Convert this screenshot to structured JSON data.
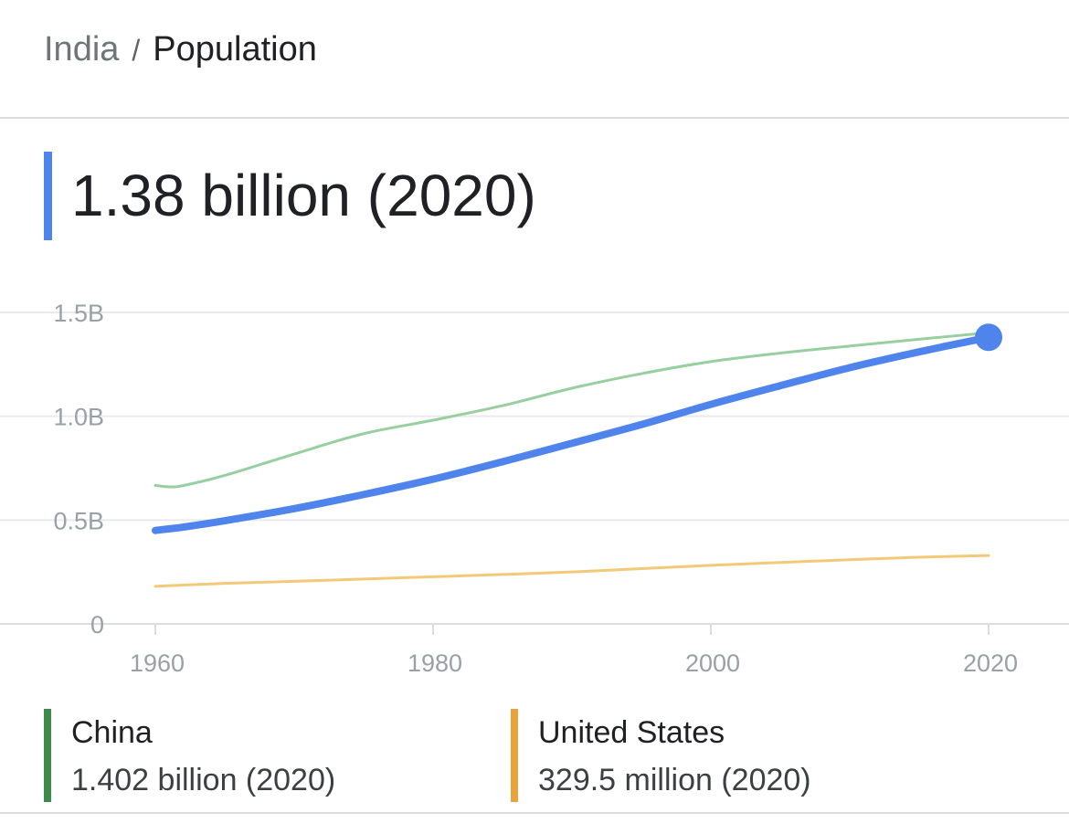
{
  "breadcrumb": {
    "parent": "India",
    "separator": "/",
    "current": "Population"
  },
  "headline": {
    "value": "1.38 billion (2020)",
    "color": "#4e84ec"
  },
  "legend": [
    {
      "name": "China",
      "value": "1.402 billion (2020)",
      "color": "#3f8a4a"
    },
    {
      "name": "United States",
      "value": "329.5 million (2020)",
      "color": "#e8a33b"
    }
  ],
  "chart_data": {
    "type": "line",
    "x": [
      1960,
      1961,
      1962,
      1965,
      1970,
      1975,
      1980,
      1985,
      1990,
      1995,
      2000,
      2005,
      2010,
      2015,
      2020
    ],
    "series": [
      {
        "country": "India",
        "color": "#4e84ec",
        "values": [
          0.45,
          0.458,
          0.466,
          0.497,
          0.555,
          0.623,
          0.697,
          0.781,
          0.87,
          0.96,
          1.057,
          1.147,
          1.234,
          1.31,
          1.38
        ]
      },
      {
        "country": "China",
        "color": "#97cfa0",
        "values": [
          0.667,
          0.66,
          0.666,
          0.715,
          0.818,
          0.916,
          0.981,
          1.051,
          1.135,
          1.205,
          1.263,
          1.304,
          1.338,
          1.371,
          1.402
        ]
      },
      {
        "country": "United States",
        "color": "#f3c978",
        "values": [
          0.181,
          0.184,
          0.187,
          0.195,
          0.205,
          0.216,
          0.227,
          0.238,
          0.25,
          0.266,
          0.282,
          0.296,
          0.309,
          0.321,
          0.3295
        ]
      }
    ],
    "highlight_point": {
      "x": 2020,
      "y": 1.38
    },
    "x_ticks": [
      "1960",
      "1980",
      "2000",
      "2020"
    ],
    "y_ticks": [
      "0",
      "0.5B",
      "1.0B",
      "1.5B"
    ],
    "y_tick_values": [
      0,
      0.5,
      1.0,
      1.5
    ],
    "xlim": [
      1960,
      2020
    ],
    "ylim": [
      0,
      1.5
    ],
    "grid": true
  }
}
